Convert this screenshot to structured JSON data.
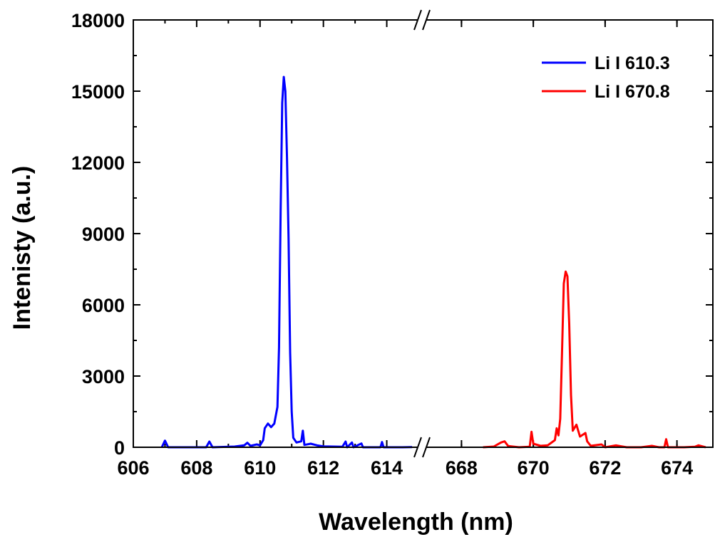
{
  "chart_data": {
    "type": "line",
    "title": "",
    "xlabel": "Wavelength (nm)",
    "ylabel": "Intenisty (a.u.)",
    "ylim": [
      0,
      18000
    ],
    "y_ticks": [
      0,
      3000,
      6000,
      9000,
      12000,
      15000,
      18000
    ],
    "y_tick_labels": [
      "0",
      "3000",
      "6000",
      "9000",
      "12000",
      "15000",
      "18000"
    ],
    "x_axis_break": true,
    "x_segments": [
      {
        "range": [
          606,
          615
        ],
        "ticks": [
          606,
          608,
          610,
          612,
          614
        ],
        "tick_labels": [
          "606",
          "608",
          "610",
          "612",
          "614"
        ]
      },
      {
        "range": [
          667,
          675
        ],
        "ticks": [
          668,
          670,
          672,
          674
        ],
        "tick_labels": [
          "668",
          "670",
          "672",
          "674"
        ]
      }
    ],
    "legend_position": "top-right",
    "series": [
      {
        "name": "Li I 610.3",
        "color": "#0000ff",
        "segment": 0,
        "points": [
          [
            606.9,
            0
          ],
          [
            607.0,
            280
          ],
          [
            607.1,
            0
          ],
          [
            608.3,
            0
          ],
          [
            608.4,
            240
          ],
          [
            608.5,
            0
          ],
          [
            609.2,
            30
          ],
          [
            609.5,
            80
          ],
          [
            609.6,
            190
          ],
          [
            609.7,
            60
          ],
          [
            609.9,
            120
          ],
          [
            610.0,
            80
          ],
          [
            610.1,
            300
          ],
          [
            610.15,
            800
          ],
          [
            610.25,
            1000
          ],
          [
            610.35,
            850
          ],
          [
            610.45,
            1000
          ],
          [
            610.55,
            1700
          ],
          [
            610.6,
            4200
          ],
          [
            610.65,
            10000
          ],
          [
            610.7,
            14500
          ],
          [
            610.75,
            15600
          ],
          [
            610.8,
            15000
          ],
          [
            610.85,
            12200
          ],
          [
            610.9,
            8800
          ],
          [
            610.95,
            4000
          ],
          [
            611.0,
            1500
          ],
          [
            611.05,
            400
          ],
          [
            611.15,
            200
          ],
          [
            611.3,
            250
          ],
          [
            611.35,
            700
          ],
          [
            611.4,
            100
          ],
          [
            611.6,
            150
          ],
          [
            611.8,
            80
          ],
          [
            612.0,
            40
          ],
          [
            612.3,
            30
          ],
          [
            612.6,
            20
          ],
          [
            612.7,
            240
          ],
          [
            612.75,
            0
          ],
          [
            612.9,
            200
          ],
          [
            612.95,
            0
          ],
          [
            613.2,
            160
          ],
          [
            613.25,
            0
          ],
          [
            613.8,
            0
          ],
          [
            613.85,
            220
          ],
          [
            613.9,
            0
          ],
          [
            614.5,
            0
          ],
          [
            614.8,
            10
          ]
        ]
      },
      {
        "name": "Li I 670.8",
        "color": "#ff0000",
        "segment": 1,
        "points": [
          [
            668.6,
            0
          ],
          [
            668.9,
            30
          ],
          [
            669.1,
            200
          ],
          [
            669.2,
            250
          ],
          [
            669.3,
            50
          ],
          [
            669.6,
            0
          ],
          [
            669.9,
            20
          ],
          [
            669.95,
            650
          ],
          [
            670.0,
            150
          ],
          [
            670.2,
            60
          ],
          [
            670.4,
            80
          ],
          [
            670.6,
            300
          ],
          [
            670.65,
            800
          ],
          [
            670.7,
            500
          ],
          [
            670.75,
            1200
          ],
          [
            670.8,
            4000
          ],
          [
            670.85,
            6900
          ],
          [
            670.9,
            7400
          ],
          [
            670.95,
            7200
          ],
          [
            671.0,
            5200
          ],
          [
            671.05,
            2200
          ],
          [
            671.1,
            700
          ],
          [
            671.2,
            950
          ],
          [
            671.3,
            450
          ],
          [
            671.45,
            600
          ],
          [
            671.5,
            250
          ],
          [
            671.6,
            60
          ],
          [
            671.9,
            120
          ],
          [
            672.0,
            0
          ],
          [
            672.3,
            80
          ],
          [
            672.6,
            0
          ],
          [
            673.0,
            0
          ],
          [
            673.3,
            60
          ],
          [
            673.5,
            0
          ],
          [
            673.65,
            0
          ],
          [
            673.7,
            340
          ],
          [
            673.75,
            0
          ],
          [
            674.2,
            0
          ],
          [
            674.5,
            20
          ],
          [
            674.6,
            80
          ],
          [
            674.8,
            0
          ]
        ]
      }
    ]
  }
}
